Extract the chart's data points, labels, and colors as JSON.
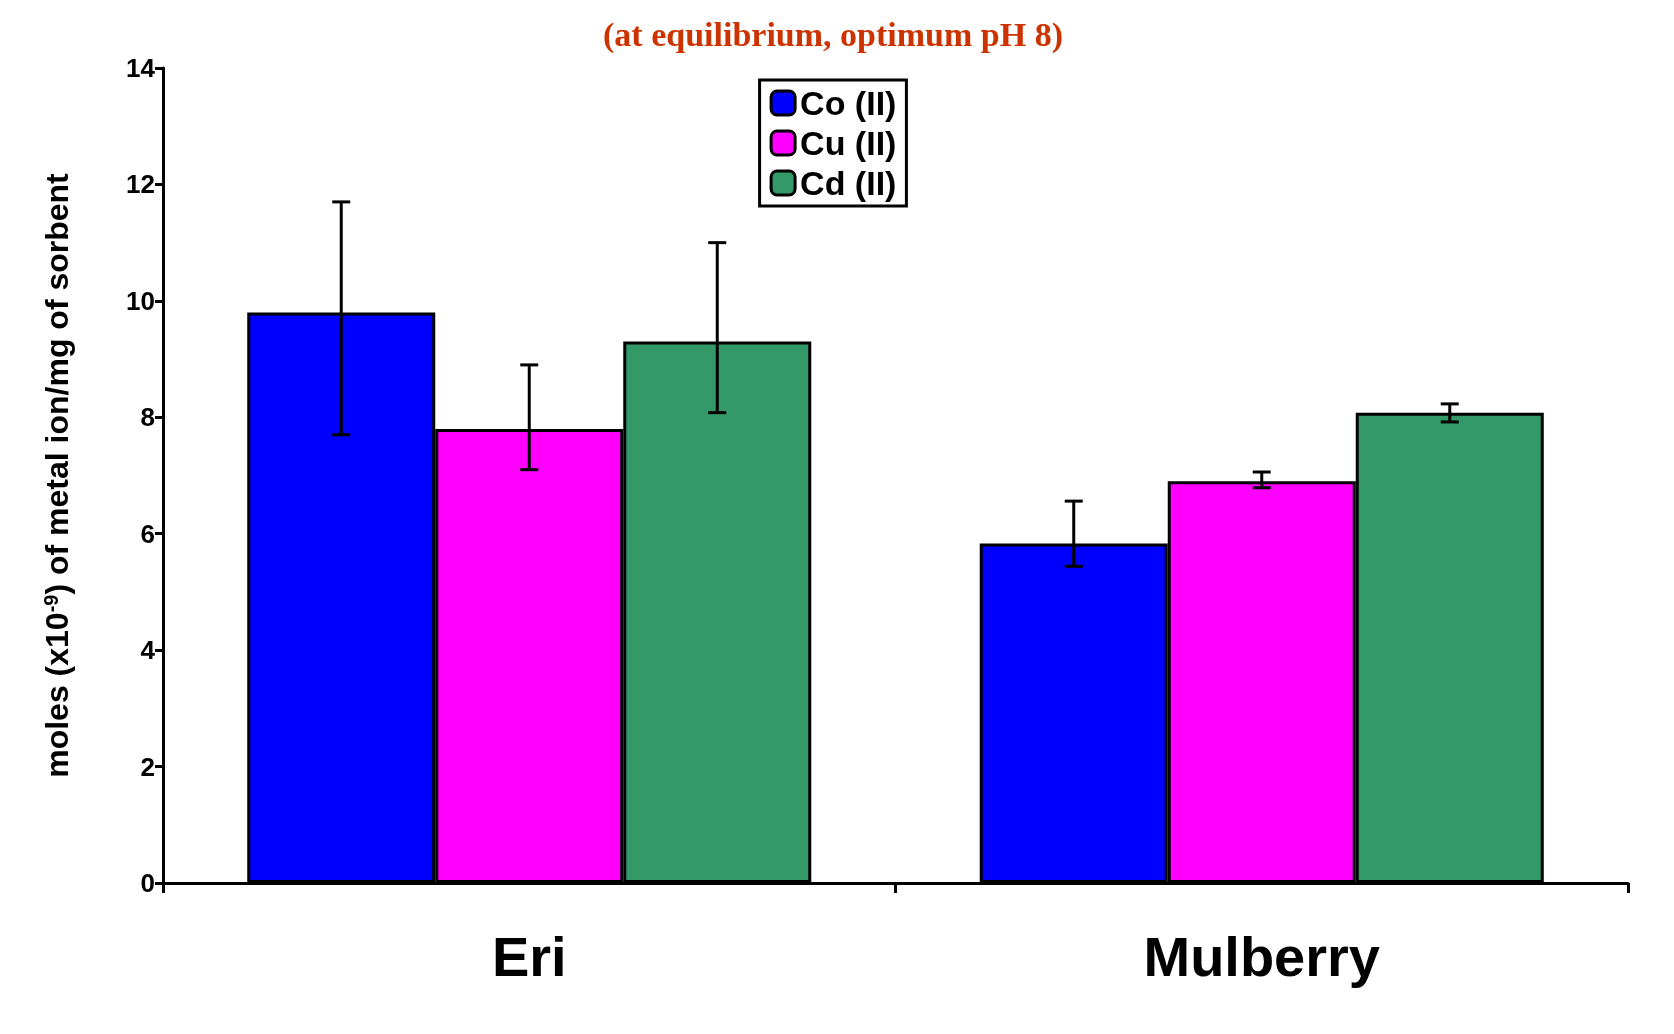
{
  "chart_data": {
    "type": "bar",
    "title": "(at equilibrium, optimum pH 8)",
    "ylabel": "moles (x10$^{-9}$) of metal ion/mg of sorbent",
    "categories": [
      "Eri",
      "Mulberry"
    ],
    "series": [
      {
        "name": "Co (II)",
        "color": "#0000ff",
        "values": [
          9.8,
          5.83
        ],
        "errors": [
          [
            7.7,
            11.7
          ],
          [
            5.44,
            6.56
          ]
        ]
      },
      {
        "name": "Cu (II)",
        "color": "#ff00ff",
        "values": [
          7.8,
          6.9
        ],
        "errors": [
          [
            7.1,
            8.9
          ],
          [
            6.79,
            7.06
          ]
        ]
      },
      {
        "name": "Cd (II)",
        "color": "#339966",
        "values": [
          9.3,
          8.08
        ],
        "errors": [
          [
            8.08,
            11.0
          ],
          [
            7.92,
            8.23
          ]
        ]
      }
    ],
    "ylim": [
      0,
      14
    ],
    "yticks": [
      0,
      2,
      4,
      6,
      8,
      10,
      12,
      14
    ],
    "grid": false,
    "legend": "top"
  }
}
